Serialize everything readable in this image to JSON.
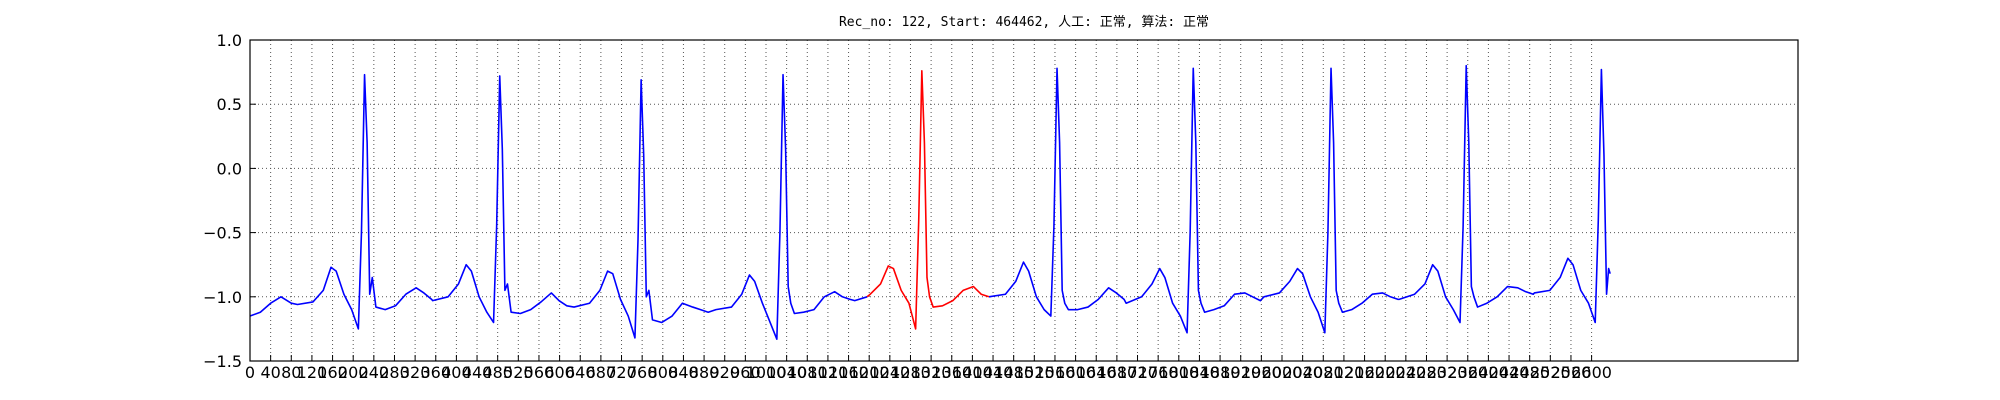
{
  "chart_data": {
    "type": "line",
    "title": "Rec_no: 122, Start: 464462, 人工: 正常, 算法: 正常",
    "xlim": [
      0,
      3000
    ],
    "xticks": [
      0,
      40,
      80,
      120,
      160,
      200,
      240,
      280,
      320,
      360,
      400,
      440,
      480,
      520,
      560,
      600,
      640,
      680,
      720,
      760,
      800,
      840,
      880,
      920,
      960,
      1000,
      1040,
      1080,
      1120,
      1160,
      1200,
      1240,
      1280,
      1320,
      1360,
      1400,
      1440,
      1480,
      1520,
      1560,
      1600,
      1640,
      1680,
      1720,
      1760,
      1800,
      1840,
      1880,
      1920,
      1960,
      2000,
      2040,
      2080,
      2120,
      2160,
      2200,
      2240,
      2280,
      2320,
      2360,
      2400,
      2440,
      2480,
      2520,
      2560,
      2600
    ],
    "ylim": [
      -1.5,
      1.0
    ],
    "yticks": [
      {
        "value": -1.5,
        "label": "−1.5"
      },
      {
        "value": -1.0,
        "label": "−1.0"
      },
      {
        "value": -0.5,
        "label": "−0.5"
      },
      {
        "value": 0,
        "label": "0.0"
      },
      0.5,
      {
        "value": 1.0,
        "label": "1.0"
      }
    ],
    "grid": true,
    "series": [
      {
        "color": "#0000ff",
        "x": [
          0,
          20,
          40,
          60,
          80,
          92,
          122,
          142,
          157,
          167,
          182,
          197,
          210,
          216,
          222,
          227,
          232,
          237,
          244,
          262,
          282,
          302,
          322,
          337,
          352,
          354,
          384,
          404,
          419,
          429,
          444,
          459,
          472,
          478,
          484,
          489,
          494,
          499,
          506,
          524,
          544,
          564,
          584,
          599,
          614,
          628,
          658,
          678,
          693,
          703,
          718,
          733,
          746,
          752,
          758,
          763,
          768,
          773,
          780,
          798,
          818,
          838,
          858,
          873,
          888,
          903,
          933,
          953,
          968,
          978,
          993,
          1008,
          1021,
          1027,
          1033,
          1038,
          1043,
          1048,
          1055,
          1073,
          1093,
          1113,
          1133,
          1148,
          1163,
          1172,
          1196,
          1300,
          1432,
          1464,
          1484,
          1499,
          1509,
          1524,
          1539,
          1552,
          1558,
          1564,
          1569,
          1574,
          1579,
          1586,
          1604,
          1624,
          1644,
          1664,
          1679,
          1694,
          1698,
          1728,
          1748,
          1763,
          1773,
          1788,
          1803,
          1816,
          1822,
          1828,
          1833,
          1838,
          1843,
          1850,
          1868,
          1888,
          1908,
          1928,
          1943,
          1958,
          1965,
          1995,
          2015,
          2030,
          2040,
          2055,
          2070,
          2083,
          2089,
          2095,
          2100,
          2105,
          2110,
          2117,
          2135,
          2155,
          2175,
          2195,
          2210,
          2225,
          2227,
          2257,
          2277,
          2292,
          2302,
          2317,
          2332,
          2345,
          2351,
          2357,
          2362,
          2367,
          2372,
          2379,
          2397,
          2417,
          2437,
          2457,
          2472,
          2487,
          2489,
          2519,
          2539,
          2554,
          2564,
          2579,
          2594,
          2607,
          2613,
          2619,
          2624,
          2629,
          2633,
          2636
        ],
        "values": [
          -1.15,
          -1.12,
          -1.05,
          -1.0,
          -1.05,
          -1.06,
          -1.04,
          -0.95,
          -0.77,
          -0.8,
          -0.98,
          -1.1,
          -1.25,
          -0.5,
          0.73,
          0.2,
          -0.98,
          -0.85,
          -1.08,
          -1.1,
          -1.07,
          -0.98,
          -0.93,
          -0.97,
          -1.02,
          -1.03,
          -1.0,
          -0.9,
          -0.75,
          -0.8,
          -1.0,
          -1.12,
          -1.2,
          -0.45,
          0.72,
          0.15,
          -0.95,
          -0.9,
          -1.12,
          -1.13,
          -1.1,
          -1.04,
          -0.97,
          -1.03,
          -1.07,
          -1.08,
          -1.05,
          -0.95,
          -0.8,
          -0.82,
          -1.02,
          -1.15,
          -1.32,
          -0.55,
          0.69,
          0.1,
          -1.0,
          -0.95,
          -1.18,
          -1.2,
          -1.15,
          -1.05,
          -1.08,
          -1.1,
          -1.12,
          -1.1,
          -1.08,
          -0.98,
          -0.83,
          -0.88,
          -1.05,
          -1.2,
          -1.33,
          -0.5,
          0.73,
          0.15,
          -0.92,
          -1.05,
          -1.13,
          -1.12,
          -1.1,
          -1.0,
          -0.96,
          -1.0,
          -1.02,
          -1.03,
          -1.0,
          null,
          -1.0,
          -0.98,
          -0.88,
          -0.73,
          -0.8,
          -1.0,
          -1.1,
          -1.15,
          -0.45,
          0.78,
          0.2,
          -0.95,
          -1.05,
          -1.1,
          -1.1,
          -1.08,
          -1.02,
          -0.93,
          -0.97,
          -1.02,
          -1.05,
          -1.0,
          -0.9,
          -0.78,
          -0.85,
          -1.05,
          -1.15,
          -1.28,
          -0.5,
          0.78,
          0.2,
          -0.95,
          -1.05,
          -1.12,
          -1.1,
          -1.07,
          -0.98,
          -0.97,
          -1.0,
          -1.03,
          -1.0,
          -0.97,
          -0.88,
          -0.78,
          -0.82,
          -1.0,
          -1.12,
          -1.28,
          -0.5,
          0.78,
          0.2,
          -0.95,
          -1.05,
          -1.12,
          -1.1,
          -1.05,
          -0.98,
          -0.97,
          -1.0,
          -1.02,
          -1.02,
          -0.98,
          -0.9,
          -0.75,
          -0.8,
          -1.0,
          -1.1,
          -1.2,
          -0.45,
          0.8,
          0.2,
          -0.92,
          -1.0,
          -1.08,
          -1.05,
          -1.0,
          -0.92,
          -0.93,
          -0.96,
          -0.98,
          -0.97,
          -0.95,
          -0.85,
          -0.7,
          -0.75,
          -0.95,
          -1.05,
          -1.2,
          -0.4,
          0.77,
          0.1,
          -0.98,
          -0.78,
          -0.82
        ]
      },
      {
        "color": "#ff0000",
        "x": [
          1196,
          1202,
          1222,
          1237,
          1247,
          1262,
          1277,
          1290,
          1296,
          1302,
          1307,
          1312,
          1317,
          1324,
          1342,
          1362,
          1382,
          1402,
          1417,
          1432
        ],
        "values": [
          -1.0,
          -0.98,
          -0.9,
          -0.76,
          -0.78,
          -0.95,
          -1.05,
          -1.25,
          -0.4,
          0.76,
          0.2,
          -0.85,
          -1.0,
          -1.08,
          -1.07,
          -1.03,
          -0.95,
          -0.92,
          -0.98,
          -1.0
        ]
      }
    ]
  }
}
